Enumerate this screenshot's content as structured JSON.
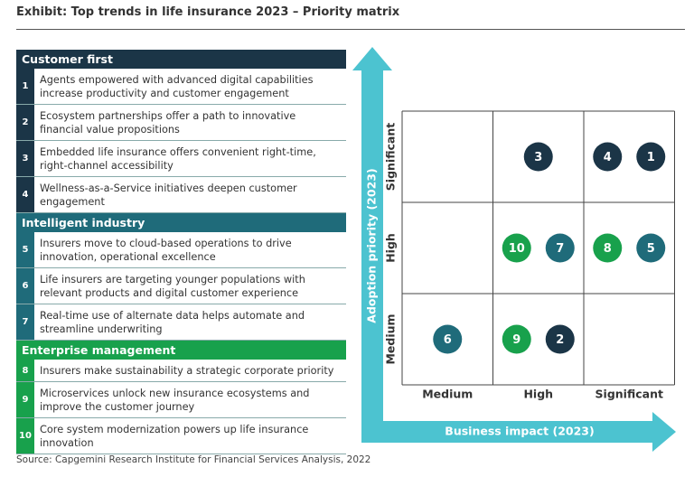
{
  "header": {
    "title": "Exhibit: Top trends in life insurance 2023 – Priority matrix"
  },
  "sections": [
    {
      "title": "Customer first",
      "items": [
        {
          "number": "1",
          "text": "Agents empowered with advanced digital capabilities increase productivity and customer engagement"
        },
        {
          "number": "2",
          "text": "Ecosystem partnerships offer a path to innovative financial value propositions"
        },
        {
          "number": "3",
          "text": "Embedded life insurance offers convenient right-time, right-channel accessibility"
        },
        {
          "number": "4",
          "text": "Wellness-as-a-Service initiatives deepen customer engagement"
        }
      ]
    },
    {
      "title": "Intelligent industry",
      "items": [
        {
          "number": "5",
          "text": "Insurers move to cloud-based operations to drive innovation, operational excellence"
        },
        {
          "number": "6",
          "text": "Life insurers are targeting younger populations with relevant products and digital customer experience"
        },
        {
          "number": "7",
          "text": "Real-time use of alternate data helps automate and streamline underwriting"
        }
      ]
    },
    {
      "title": "Enterprise management",
      "items": [
        {
          "number": "8",
          "text": "Insurers make sustainability a strategic corporate priority"
        },
        {
          "number": "9",
          "text": "Microservices unlock new insurance ecosystems and improve the customer journey"
        },
        {
          "number": "10",
          "text": "Core system modernization powers up life insurance innovation"
        }
      ]
    }
  ],
  "matrix": {
    "y_axis_label": "Adoption priority (2023)",
    "x_axis_label": "Business impact (2023)",
    "columns": [
      "Medium",
      "High",
      "Significant"
    ],
    "rows": [
      {
        "label": "Significant",
        "cells": [
          [],
          [
            "3"
          ],
          [
            "4",
            "1"
          ]
        ]
      },
      {
        "label": "High",
        "cells": [
          [],
          [
            "10",
            "7"
          ],
          [
            "8",
            "5"
          ]
        ]
      },
      {
        "label": "Medium",
        "cells": [
          [
            "6"
          ],
          [
            "9",
            "2"
          ],
          []
        ]
      }
    ]
  },
  "footer": {
    "source": "Source: Capgemini Research Institute for Financial Services Analysis, 2022"
  }
}
